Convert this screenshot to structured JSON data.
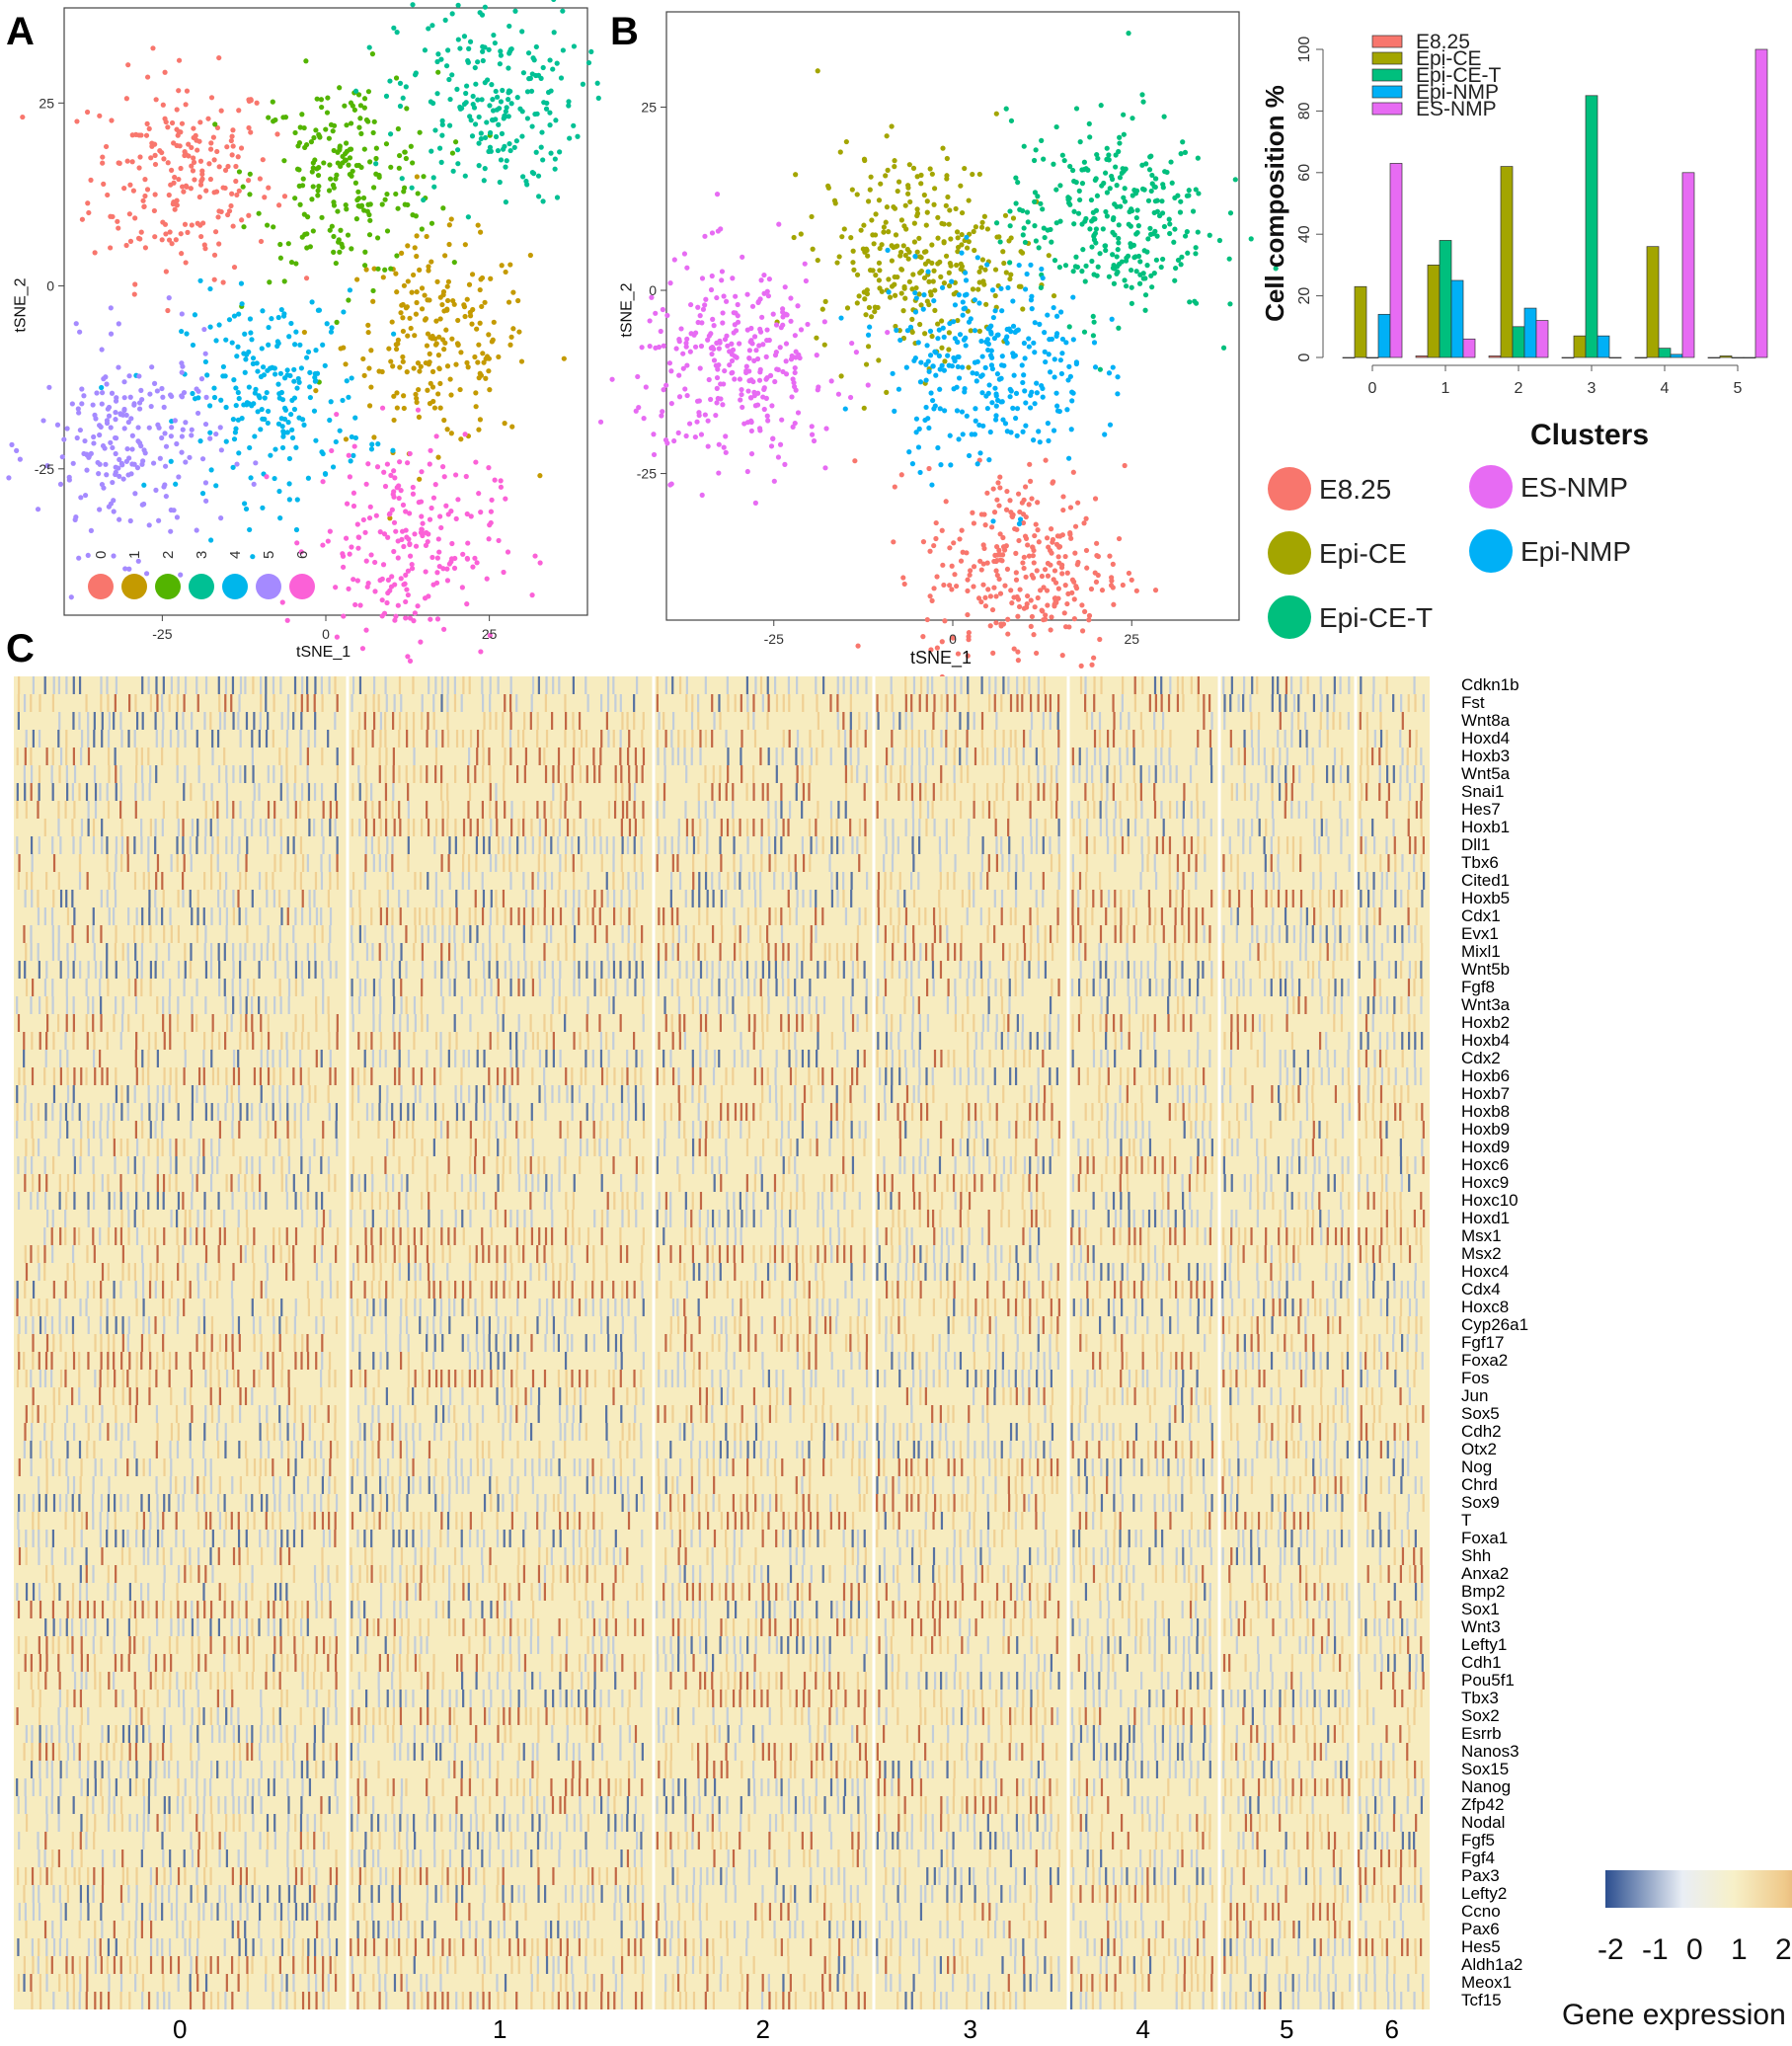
{
  "panels": {
    "a": "A",
    "b": "B",
    "c": "C"
  },
  "tsne_axes": {
    "xlabel": "tSNE_1",
    "ylabel": "tSNE_2",
    "panel_a_ticks": {
      "x": [
        "-25",
        "0",
        "25"
      ],
      "y": [
        "25",
        "0",
        "-25"
      ]
    },
    "panel_b_ticks": {
      "x": [
        "-25",
        "0",
        "25"
      ],
      "y": [
        "25",
        "0",
        "-25"
      ]
    }
  },
  "panel_a_legend": {
    "items": [
      {
        "label": "0",
        "color": "#F8766D"
      },
      {
        "label": "1",
        "color": "#C49A00"
      },
      {
        "label": "2",
        "color": "#53B400"
      },
      {
        "label": "3",
        "color": "#00C094"
      },
      {
        "label": "4",
        "color": "#00B6EB"
      },
      {
        "label": "5",
        "color": "#A58AFF"
      },
      {
        "label": "6",
        "color": "#FB61D7"
      }
    ]
  },
  "panel_b_legend": {
    "items": [
      {
        "label": "E8.25",
        "color": "#F8766D"
      },
      {
        "label": "ES-NMP",
        "color": "#E76BF3"
      },
      {
        "label": "Epi-CE",
        "color": "#A3A500"
      },
      {
        "label": "Epi-NMP",
        "color": "#00B0F6"
      },
      {
        "label": "Epi-CE-T",
        "color": "#00BF7D"
      }
    ]
  },
  "chart_data": [
    {
      "type": "scatter",
      "panel": "A",
      "xlabel": "tSNE_1",
      "ylabel": "tSNE_2",
      "xlim": [
        -40,
        40
      ],
      "ylim": [
        -45,
        38
      ],
      "series": [
        {
          "name": "0",
          "color": "#F8766D",
          "center": [
            -22,
            15
          ]
        },
        {
          "name": "1",
          "color": "#C49A00",
          "center": [
            17,
            -8
          ]
        },
        {
          "name": "2",
          "color": "#53B400",
          "center": [
            3,
            15
          ]
        },
        {
          "name": "3",
          "color": "#00C094",
          "center": [
            25,
            25
          ]
        },
        {
          "name": "4",
          "color": "#00B6EB",
          "center": [
            -8,
            -15
          ]
        },
        {
          "name": "5",
          "color": "#A58AFF",
          "center": [
            -30,
            -22
          ]
        },
        {
          "name": "6",
          "color": "#FB61D7",
          "center": [
            12,
            -35
          ]
        }
      ]
    },
    {
      "type": "scatter",
      "panel": "B",
      "xlabel": "tSNE_1",
      "ylabel": "tSNE_2",
      "xlim": [
        -40,
        40
      ],
      "ylim": [
        -45,
        38
      ],
      "series": [
        {
          "name": "E8.25",
          "color": "#F8766D",
          "center": [
            10,
            -38
          ]
        },
        {
          "name": "Epi-CE",
          "color": "#A3A500",
          "center": [
            -5,
            5
          ]
        },
        {
          "name": "Epi-CE-T",
          "color": "#00BF7D",
          "center": [
            22,
            10
          ]
        },
        {
          "name": "Epi-NMP",
          "color": "#00B0F6",
          "center": [
            5,
            -10
          ]
        },
        {
          "name": "ES-NMP",
          "color": "#E76BF3",
          "center": [
            -30,
            -10
          ]
        }
      ]
    },
    {
      "type": "bar",
      "panel": "B-right",
      "title": "",
      "xlabel": "Clusters",
      "ylabel": "Cell composition %",
      "ylim": [
        0,
        100
      ],
      "yticks": [
        "0",
        "20",
        "40",
        "60",
        "80",
        "100"
      ],
      "categories": [
        "0",
        "1",
        "2",
        "3",
        "4",
        "5"
      ],
      "legend": "top-left",
      "series": [
        {
          "name": "E8.25",
          "color": "#F8766D",
          "values": [
            0,
            0.5,
            0.5,
            0,
            0,
            0
          ]
        },
        {
          "name": "Epi-CE",
          "color": "#A3A500",
          "values": [
            23,
            30,
            62,
            7,
            36,
            0.5
          ]
        },
        {
          "name": "Epi-CE-T",
          "color": "#00BF7D",
          "values": [
            0,
            38,
            10,
            85,
            3,
            0
          ]
        },
        {
          "name": "Epi-NMP",
          "color": "#00B0F6",
          "values": [
            14,
            25,
            16,
            7,
            1,
            0
          ]
        },
        {
          "name": "ES-NMP",
          "color": "#E76BF3",
          "values": [
            63,
            6,
            12,
            0,
            60,
            100
          ]
        }
      ]
    },
    {
      "type": "heatmap",
      "panel": "C",
      "colorbar": {
        "ticks": [
          "-2",
          "-1",
          "0",
          "1",
          "2"
        ],
        "label": "Gene expression",
        "range": [
          -2,
          2
        ]
      },
      "clusters": [
        "0",
        "1",
        "2",
        "3",
        "4",
        "5",
        "6"
      ],
      "genes": [
        "Cdkn1b",
        "Fst",
        "Wnt8a",
        "Hoxd4",
        "Hoxb3",
        "Wnt5a",
        "Snai1",
        "Hes7",
        "Hoxb1",
        "Dll1",
        "Tbx6",
        "Cited1",
        "Hoxb5",
        "Cdx1",
        "Evx1",
        "Mixl1",
        "Wnt5b",
        "Fgf8",
        "Wnt3a",
        "Hoxb2",
        "Hoxb4",
        "Cdx2",
        "Hoxb6",
        "Hoxb7",
        "Hoxb8",
        "Hoxb9",
        "Hoxd9",
        "Hoxc6",
        "Hoxc9",
        "Hoxc10",
        "Hoxd1",
        "Msx1",
        "Msx2",
        "Hoxc4",
        "Cdx4",
        "Hoxc8",
        "Cyp26a1",
        "Fgf17",
        "Foxa2",
        "Fos",
        "Jun",
        "Sox5",
        "Cdh2",
        "Otx2",
        "Nog",
        "Chrd",
        "Sox9",
        "T",
        "Foxa1",
        "Shh",
        "Anxa2",
        "Bmp2",
        "Sox1",
        "Wnt3",
        "Lefty1",
        "Cdh1",
        "Pou5f1",
        "Tbx3",
        "Sox2",
        "Esrrb",
        "Nanos3",
        "Sox15",
        "Nanog",
        "Zfp42",
        "Nodal",
        "Fgf5",
        "Fgf4",
        "Pax3",
        "Lefty2",
        "Ccno",
        "Pax6",
        "Hes5",
        "Aldh1a2",
        "Meox1",
        "Tcf15"
      ]
    }
  ]
}
